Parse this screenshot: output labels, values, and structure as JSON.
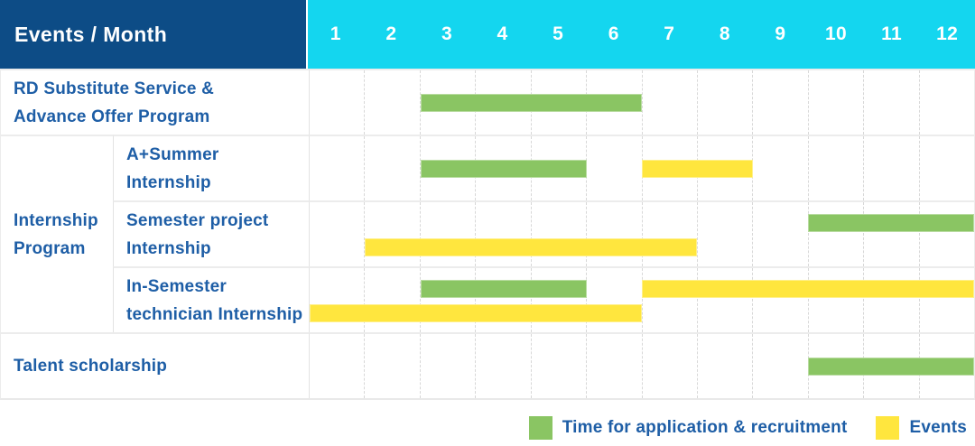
{
  "colors": {
    "header_bg": "#0d4c86",
    "months_bg": "#14d6ef",
    "header_text": "#ffffff",
    "label_text": "#1e5ea6",
    "green": "#8ac563",
    "yellow": "#ffe63e",
    "grid_line_horizontal": "#ececec",
    "grid_line_vertical": "#d8d8d8",
    "background": "#ffffff"
  },
  "header": {
    "title": "Events / Month",
    "months": [
      "1",
      "2",
      "3",
      "4",
      "5",
      "6",
      "7",
      "8",
      "9",
      "10",
      "11",
      "12"
    ]
  },
  "legend": [
    {
      "key": "application",
      "label": "Time for application & recruitment",
      "color": "#8ac563"
    },
    {
      "key": "events",
      "label": "Events",
      "color": "#ffe63e"
    }
  ],
  "chart_data": {
    "type": "bar",
    "subtype": "gantt-timeline",
    "title": "Events / Month",
    "xlabel": "Month",
    "x_ticks": [
      1,
      2,
      3,
      4,
      5,
      6,
      7,
      8,
      9,
      10,
      11,
      12
    ],
    "x_range": [
      1,
      12
    ],
    "grid": true,
    "legend_position": "bottom-right",
    "series": [
      {
        "key": "application",
        "name": "Time for application & recruitment",
        "color": "#8ac563"
      },
      {
        "key": "events",
        "name": "Events",
        "color": "#ffe63e"
      }
    ],
    "rows": [
      {
        "group": "",
        "label": "RD Substitute Service & Advance Offer Program",
        "label_lines": [
          "RD Substitute Service &",
          "Advance Offer Program"
        ],
        "bars": [
          {
            "series": "application",
            "start_month": 3,
            "end_month": 6,
            "lane": "middle"
          }
        ]
      },
      {
        "group": "Internship Program",
        "group_lines": [
          "Internship",
          "Program"
        ],
        "label": "A+Summer Internship",
        "label_lines": [
          "A+Summer",
          "Internship"
        ],
        "bars": [
          {
            "series": "application",
            "start_month": 3,
            "end_month": 5,
            "lane": "middle"
          },
          {
            "series": "events",
            "start_month": 7,
            "end_month": 8,
            "lane": "middle"
          }
        ]
      },
      {
        "group": "Internship Program",
        "label": "Semester project Internship",
        "label_lines": [
          "Semester project",
          "Internship"
        ],
        "bars": [
          {
            "series": "application",
            "start_month": 10,
            "end_month": 12,
            "lane": "top"
          },
          {
            "series": "events",
            "start_month": 2,
            "end_month": 7,
            "lane": "bottom"
          }
        ]
      },
      {
        "group": "Internship Program",
        "label": "In-Semester technician Internship",
        "label_lines": [
          "In-Semester",
          "technician Internship"
        ],
        "bars": [
          {
            "series": "application",
            "start_month": 3,
            "end_month": 5,
            "lane": "top"
          },
          {
            "series": "events",
            "start_month": 7,
            "end_month": 12,
            "lane": "top"
          },
          {
            "series": "events",
            "start_month": 1,
            "end_month": 6,
            "lane": "bottom"
          }
        ]
      },
      {
        "group": "",
        "label": "Talent scholarship",
        "label_lines": [
          "Talent scholarship"
        ],
        "bars": [
          {
            "series": "application",
            "start_month": 10,
            "end_month": 12,
            "lane": "middle"
          }
        ]
      }
    ]
  }
}
